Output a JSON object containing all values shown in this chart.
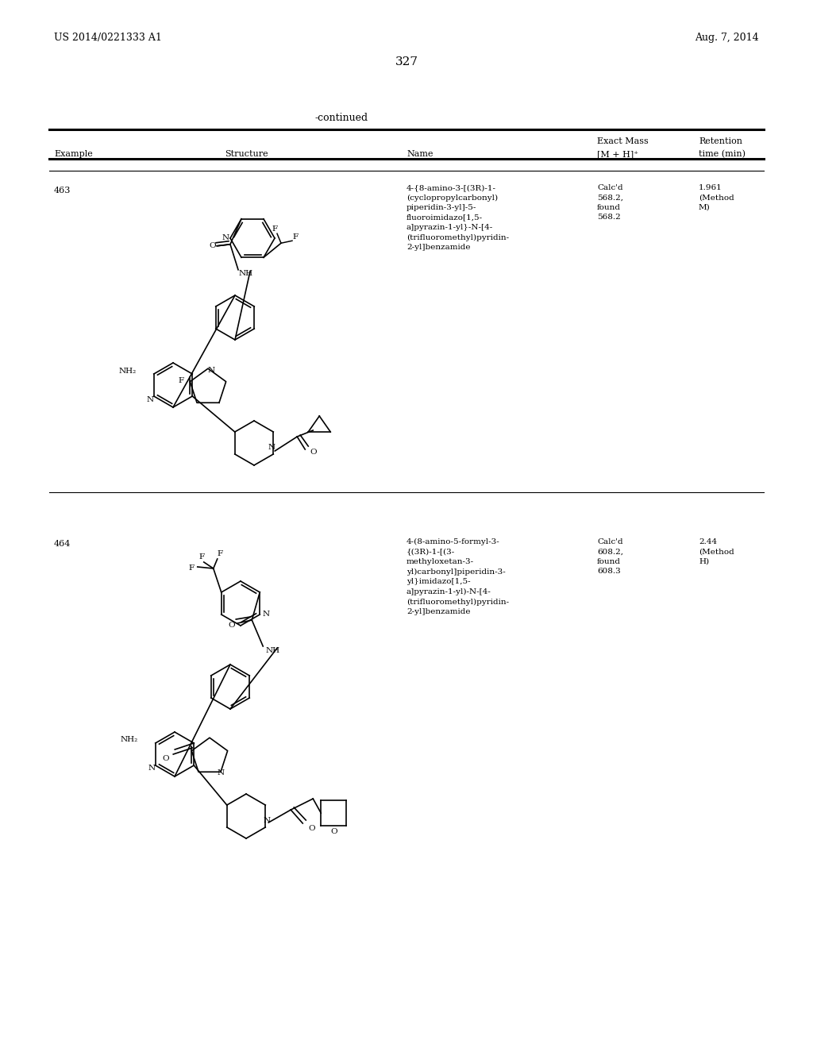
{
  "bg_color": "#ffffff",
  "page_number": "327",
  "header_left": "US 2014/0221333 A1",
  "header_right": "Aug. 7, 2014",
  "continued_label": "-continued",
  "entry463": {
    "example": "463",
    "name": "4-{8-amino-3-[(3R)-1-\n(cyclopropylcarbonyl)\npiperidin-3-yl]-5-\nfluoroimidazo[1,5-\na]pyrazin-1-yl}-N-[4-\n(trifluoromethyl)pyridin-\n2-yl]benzamide",
    "exact_mass": "Calc'd\n568.2,\nfound\n568.2",
    "retention": "1.961\n(Method\nM)"
  },
  "entry464": {
    "example": "464",
    "name": "4-(8-amino-5-formyl-3-\n{(3R)-1-[(3-\nmethyloxetan-3-\nyl)carbonyl]piperidin-3-\nyl}imidazo[1,5-\na]pyrazin-1-yl)-N-[4-\n(trifluoromethyl)pyridin-\n2-yl]benzamide",
    "exact_mass": "Calc'd\n608.2,\nfound\n608.3",
    "retention": "2.44\n(Method\nH)"
  }
}
